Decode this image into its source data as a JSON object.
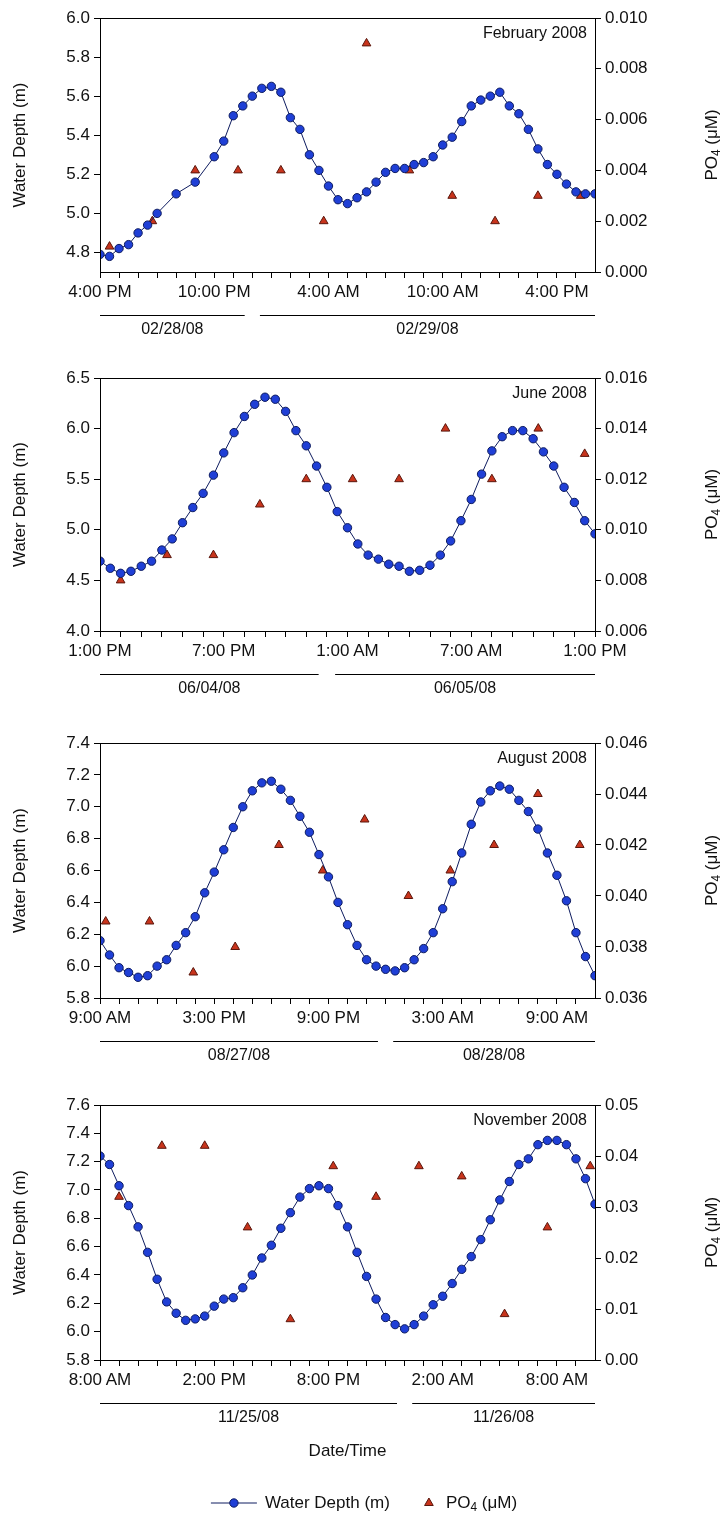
{
  "chart_data": [
    {
      "type": "line",
      "title": "February 2008",
      "ylabel": "Water Depth (m)",
      "y2label": "PO$_{4}$ (μM)",
      "annotations": [
        "02/28/08",
        "02/29/08"
      ],
      "xlim": [
        "2008-02-28T16:00",
        "2008-02-29T18:00"
      ],
      "xticks": [
        {
          "value": "2008-02-28T16:00",
          "label": "4:00 PM"
        },
        {
          "value": "2008-02-28T17:00",
          "label": null
        },
        {
          "value": "2008-02-28T18:00",
          "label": null
        },
        {
          "value": "2008-02-28T19:00",
          "label": null
        },
        {
          "value": "2008-02-28T20:00",
          "label": null
        },
        {
          "value": "2008-02-28T21:00",
          "label": null
        },
        {
          "value": "2008-02-28T22:00",
          "label": "10:00 PM"
        },
        {
          "value": "2008-02-28T23:00",
          "label": null
        },
        {
          "value": "2008-02-29T00:00",
          "label": null
        },
        {
          "value": "2008-02-29T01:00",
          "label": null
        },
        {
          "value": "2008-02-29T02:00",
          "label": null
        },
        {
          "value": "2008-02-29T03:00",
          "label": null
        },
        {
          "value": "2008-02-29T04:00",
          "label": "4:00 AM"
        },
        {
          "value": "2008-02-29T05:00",
          "label": null
        },
        {
          "value": "2008-02-29T06:00",
          "label": null
        },
        {
          "value": "2008-02-29T07:00",
          "label": null
        },
        {
          "value": "2008-02-29T08:00",
          "label": null
        },
        {
          "value": "2008-02-29T09:00",
          "label": null
        },
        {
          "value": "2008-02-29T10:00",
          "label": "10:00 AM"
        },
        {
          "value": "2008-02-29T11:00",
          "label": null
        },
        {
          "value": "2008-02-29T12:00",
          "label": null
        },
        {
          "value": "2008-02-29T13:00",
          "label": null
        },
        {
          "value": "2008-02-29T14:00",
          "label": null
        },
        {
          "value": "2008-02-29T15:00",
          "label": null
        },
        {
          "value": "2008-02-29T16:00",
          "label": "4:00 PM"
        },
        {
          "value": "2008-02-29T17:00",
          "label": null
        }
      ],
      "ylim": [
        4.7,
        6.0
      ],
      "yticks": [
        {
          "value": 4.8,
          "label": "4.8"
        },
        {
          "value": 5.0,
          "label": "5.0"
        },
        {
          "value": 5.2,
          "label": "5.2"
        },
        {
          "value": 5.4,
          "label": "5.4"
        },
        {
          "value": 5.6,
          "label": "5.6"
        },
        {
          "value": 5.8,
          "label": "5.8"
        },
        {
          "value": 6.0,
          "label": "6.0"
        }
      ],
      "y2lim": [
        0,
        0.01
      ],
      "y2ticks": [
        {
          "value": 0,
          "label": "0.000"
        },
        {
          "value": 0.002,
          "label": "0.002"
        },
        {
          "value": 0.004,
          "label": "0.004"
        },
        {
          "value": 0.006,
          "label": "0.006"
        },
        {
          "value": 0.008,
          "label": "0.008"
        },
        {
          "value": 0.01,
          "label": "0.010"
        }
      ],
      "series": [
        {
          "color": "#1f3fd6",
          "marker": "circle",
          "x": [
            "2008-02-28T16:00",
            "2008-02-28T16:30",
            "2008-02-28T17:00",
            "2008-02-28T17:30",
            "2008-02-28T18:00",
            "2008-02-28T18:30",
            "2008-02-28T19:00",
            "2008-02-28T20:00",
            "2008-02-28T21:00",
            "2008-02-28T22:00",
            "2008-02-28T22:30",
            "2008-02-28T23:00",
            "2008-02-28T23:30",
            "2008-02-29T00:00",
            "2008-02-29T00:30",
            "2008-02-29T01:00",
            "2008-02-29T01:30",
            "2008-02-29T02:00",
            "2008-02-29T02:30",
            "2008-02-29T03:00",
            "2008-02-29T03:30",
            "2008-02-29T04:00",
            "2008-02-29T04:30",
            "2008-02-29T05:00",
            "2008-02-29T05:30",
            "2008-02-29T06:00",
            "2008-02-29T06:30",
            "2008-02-29T07:00",
            "2008-02-29T07:30",
            "2008-02-29T08:00",
            "2008-02-29T08:30",
            "2008-02-29T09:00",
            "2008-02-29T09:30",
            "2008-02-29T10:00",
            "2008-02-29T10:30",
            "2008-02-29T11:00",
            "2008-02-29T11:30",
            "2008-02-29T12:00",
            "2008-02-29T12:30",
            "2008-02-29T13:00",
            "2008-02-29T13:30",
            "2008-02-29T14:00",
            "2008-02-29T14:30",
            "2008-02-29T15:00",
            "2008-02-29T15:30",
            "2008-02-29T16:00",
            "2008-02-29T16:30",
            "2008-02-29T17:00",
            "2008-02-29T17:30",
            "2008-02-29T18:00"
          ],
          "values": [
            4.79,
            4.78,
            4.82,
            4.84,
            4.9,
            4.94,
            5.0,
            5.1,
            5.16,
            5.29,
            5.37,
            5.5,
            5.55,
            5.6,
            5.64,
            5.65,
            5.62,
            5.49,
            5.43,
            5.3,
            5.22,
            5.14,
            5.07,
            5.05,
            5.08,
            5.11,
            5.16,
            5.21,
            5.23,
            5.23,
            5.25,
            5.26,
            5.29,
            5.35,
            5.39,
            5.47,
            5.55,
            5.58,
            5.6,
            5.62,
            5.55,
            5.51,
            5.43,
            5.33,
            5.25,
            5.2,
            5.15,
            5.11,
            5.1,
            5.1
          ]
        },
        {
          "type": "scatter",
          "color": "#c8341c",
          "marker": "triangle",
          "axis": "y2",
          "x": [
            "2008-02-28T16:30",
            "2008-02-28T18:45",
            "2008-02-28T21:00",
            "2008-02-28T23:15",
            "2008-02-29T01:30",
            "2008-02-29T03:45",
            "2008-02-29T06:00",
            "2008-02-29T08:15",
            "2008-02-29T10:30",
            "2008-02-29T12:45",
            "2008-02-29T15:00",
            "2008-02-29T17:15"
          ],
          "values": [
            0.001,
            0.002,
            0.004,
            0.004,
            0.004,
            0.002,
            0.009,
            0.004,
            0.003,
            0.002,
            0.003,
            0.003
          ]
        }
      ]
    },
    {
      "type": "line",
      "title": "June 2008",
      "ylabel": "Water Depth (m)",
      "y2label": "PO$_{4}$ (μM)",
      "annotations": [
        "06/04/08",
        "06/05/08"
      ],
      "xlim": [
        "2008-06-04T13:00",
        "2008-06-05T13:00"
      ],
      "xticks": [
        {
          "value": "2008-06-04T13:00",
          "label": "1:00 PM"
        },
        {
          "value": "2008-06-04T14:00",
          "label": null
        },
        {
          "value": "2008-06-04T15:00",
          "label": null
        },
        {
          "value": "2008-06-04T16:00",
          "label": null
        },
        {
          "value": "2008-06-04T17:00",
          "label": null
        },
        {
          "value": "2008-06-04T18:00",
          "label": null
        },
        {
          "value": "2008-06-04T19:00",
          "label": "7:00 PM"
        },
        {
          "value": "2008-06-04T20:00",
          "label": null
        },
        {
          "value": "2008-06-04T21:00",
          "label": null
        },
        {
          "value": "2008-06-04T22:00",
          "label": null
        },
        {
          "value": "2008-06-04T23:00",
          "label": null
        },
        {
          "value": "2008-06-05T00:00",
          "label": null
        },
        {
          "value": "2008-06-05T01:00",
          "label": "1:00 AM"
        },
        {
          "value": "2008-06-05T02:00",
          "label": null
        },
        {
          "value": "2008-06-05T03:00",
          "label": null
        },
        {
          "value": "2008-06-05T04:00",
          "label": null
        },
        {
          "value": "2008-06-05T05:00",
          "label": null
        },
        {
          "value": "2008-06-05T06:00",
          "label": null
        },
        {
          "value": "2008-06-05T07:00",
          "label": "7:00 AM"
        },
        {
          "value": "2008-06-05T08:00",
          "label": null
        },
        {
          "value": "2008-06-05T09:00",
          "label": null
        },
        {
          "value": "2008-06-05T10:00",
          "label": null
        },
        {
          "value": "2008-06-05T11:00",
          "label": null
        },
        {
          "value": "2008-06-05T12:00",
          "label": null
        },
        {
          "value": "2008-06-05T13:00",
          "label": "1:00 PM"
        }
      ],
      "ylim": [
        4.0,
        6.5
      ],
      "yticks": [
        {
          "value": 4.0,
          "label": "4.0"
        },
        {
          "value": 4.5,
          "label": "4.5"
        },
        {
          "value": 5.0,
          "label": "5.0"
        },
        {
          "value": 5.5,
          "label": "5.5"
        },
        {
          "value": 6.0,
          "label": "6.0"
        },
        {
          "value": 6.5,
          "label": "6.5"
        }
      ],
      "y2lim": [
        0.006,
        0.016
      ],
      "y2ticks": [
        {
          "value": 0.006,
          "label": "0.006"
        },
        {
          "value": 0.008,
          "label": "0.008"
        },
        {
          "value": 0.01,
          "label": "0.010"
        },
        {
          "value": 0.012,
          "label": "0.012"
        },
        {
          "value": 0.014,
          "label": "0.014"
        },
        {
          "value": 0.016,
          "label": "0.016"
        }
      ],
      "series": [
        {
          "color": "#1f3fd6",
          "marker": "circle",
          "x": [
            "2008-06-04T13:00",
            "2008-06-04T13:30",
            "2008-06-04T14:00",
            "2008-06-04T14:30",
            "2008-06-04T15:00",
            "2008-06-04T15:30",
            "2008-06-04T16:00",
            "2008-06-04T16:30",
            "2008-06-04T17:00",
            "2008-06-04T17:30",
            "2008-06-04T18:00",
            "2008-06-04T18:30",
            "2008-06-04T19:00",
            "2008-06-04T19:30",
            "2008-06-04T20:00",
            "2008-06-04T20:30",
            "2008-06-04T21:00",
            "2008-06-04T21:30",
            "2008-06-04T22:00",
            "2008-06-04T22:30",
            "2008-06-04T23:00",
            "2008-06-04T23:30",
            "2008-06-05T00:00",
            "2008-06-05T00:30",
            "2008-06-05T01:00",
            "2008-06-05T01:30",
            "2008-06-05T02:00",
            "2008-06-05T02:30",
            "2008-06-05T03:00",
            "2008-06-05T03:30",
            "2008-06-05T04:00",
            "2008-06-05T04:30",
            "2008-06-05T05:00",
            "2008-06-05T05:30",
            "2008-06-05T06:00",
            "2008-06-05T06:30",
            "2008-06-05T07:00",
            "2008-06-05T07:30",
            "2008-06-05T08:00",
            "2008-06-05T08:30",
            "2008-06-05T09:00",
            "2008-06-05T09:30",
            "2008-06-05T10:00",
            "2008-06-05T10:30",
            "2008-06-05T11:00",
            "2008-06-05T11:30",
            "2008-06-05T12:00",
            "2008-06-05T12:30",
            "2008-06-05T13:00"
          ],
          "values": [
            4.69,
            4.62,
            4.57,
            4.59,
            4.64,
            4.69,
            4.8,
            4.91,
            5.07,
            5.22,
            5.36,
            5.54,
            5.76,
            5.96,
            6.12,
            6.24,
            6.31,
            6.29,
            6.17,
            5.98,
            5.83,
            5.63,
            5.42,
            5.18,
            5.02,
            4.86,
            4.75,
            4.71,
            4.66,
            4.64,
            4.59,
            4.6,
            4.65,
            4.75,
            4.89,
            5.09,
            5.3,
            5.55,
            5.78,
            5.92,
            5.98,
            5.98,
            5.9,
            5.77,
            5.63,
            5.42,
            5.27,
            5.09,
            4.96
          ]
        },
        {
          "type": "scatter",
          "color": "#c8341c",
          "marker": "triangle",
          "axis": "y2",
          "x": [
            "2008-06-04T14:00",
            "2008-06-04T16:15",
            "2008-06-04T18:30",
            "2008-06-04T20:45",
            "2008-06-04T23:00",
            "2008-06-05T01:15",
            "2008-06-05T03:30",
            "2008-06-05T05:45",
            "2008-06-05T08:00",
            "2008-06-05T10:15",
            "2008-06-05T12:30"
          ],
          "values": [
            0.008,
            0.009,
            0.009,
            0.011,
            0.012,
            0.012,
            0.012,
            0.014,
            0.012,
            0.014,
            0.013
          ]
        }
      ]
    },
    {
      "type": "line",
      "title": "August 2008",
      "ylabel": "Water Depth (m)",
      "y2label": "PO$_{4}$ (μM)",
      "annotations": [
        "08/27/08",
        "08/28/08"
      ],
      "xlim": [
        "2008-08-27T09:00",
        "2008-08-28T11:00"
      ],
      "xticks": [
        {
          "value": "2008-08-27T09:00",
          "label": "9:00 AM"
        },
        {
          "value": "2008-08-27T10:00",
          "label": null
        },
        {
          "value": "2008-08-27T11:00",
          "label": null
        },
        {
          "value": "2008-08-27T12:00",
          "label": null
        },
        {
          "value": "2008-08-27T13:00",
          "label": null
        },
        {
          "value": "2008-08-27T14:00",
          "label": null
        },
        {
          "value": "2008-08-27T15:00",
          "label": "3:00 PM"
        },
        {
          "value": "2008-08-27T16:00",
          "label": null
        },
        {
          "value": "2008-08-27T17:00",
          "label": null
        },
        {
          "value": "2008-08-27T18:00",
          "label": null
        },
        {
          "value": "2008-08-27T19:00",
          "label": null
        },
        {
          "value": "2008-08-27T20:00",
          "label": null
        },
        {
          "value": "2008-08-27T21:00",
          "label": "9:00 PM"
        },
        {
          "value": "2008-08-27T22:00",
          "label": null
        },
        {
          "value": "2008-08-27T23:00",
          "label": null
        },
        {
          "value": "2008-08-28T00:00",
          "label": null
        },
        {
          "value": "2008-08-28T01:00",
          "label": null
        },
        {
          "value": "2008-08-28T02:00",
          "label": null
        },
        {
          "value": "2008-08-28T03:00",
          "label": "3:00 AM"
        },
        {
          "value": "2008-08-28T04:00",
          "label": null
        },
        {
          "value": "2008-08-28T05:00",
          "label": null
        },
        {
          "value": "2008-08-28T06:00",
          "label": null
        },
        {
          "value": "2008-08-28T07:00",
          "label": null
        },
        {
          "value": "2008-08-28T08:00",
          "label": null
        },
        {
          "value": "2008-08-28T09:00",
          "label": "9:00 AM"
        },
        {
          "value": "2008-08-28T10:00",
          "label": null
        }
      ],
      "ylim": [
        5.8,
        7.4
      ],
      "yticks": [
        {
          "value": 5.8,
          "label": "5.8"
        },
        {
          "value": 6.0,
          "label": "6.0"
        },
        {
          "value": 6.2,
          "label": "6.2"
        },
        {
          "value": 6.4,
          "label": "6.4"
        },
        {
          "value": 6.6,
          "label": "6.6"
        },
        {
          "value": 6.8,
          "label": "6.8"
        },
        {
          "value": 7.0,
          "label": "7.0"
        },
        {
          "value": 7.2,
          "label": "7.2"
        },
        {
          "value": 7.4,
          "label": "7.4"
        }
      ],
      "y2lim": [
        0.036,
        0.046
      ],
      "y2ticks": [
        {
          "value": 0.036,
          "label": "0.036"
        },
        {
          "value": 0.038,
          "label": "0.038"
        },
        {
          "value": 0.04,
          "label": "0.040"
        },
        {
          "value": 0.042,
          "label": "0.042"
        },
        {
          "value": 0.044,
          "label": "0.044"
        },
        {
          "value": 0.046,
          "label": "0.046"
        }
      ],
      "series": [
        {
          "color": "#1f3fd6",
          "marker": "circle",
          "x": [
            "2008-08-27T09:00",
            "2008-08-27T09:30",
            "2008-08-27T10:00",
            "2008-08-27T10:30",
            "2008-08-27T11:00",
            "2008-08-27T11:30",
            "2008-08-27T12:00",
            "2008-08-27T12:30",
            "2008-08-27T13:00",
            "2008-08-27T13:30",
            "2008-08-27T14:00",
            "2008-08-27T14:30",
            "2008-08-27T15:00",
            "2008-08-27T15:30",
            "2008-08-27T16:00",
            "2008-08-27T16:30",
            "2008-08-27T17:00",
            "2008-08-27T17:30",
            "2008-08-27T18:00",
            "2008-08-27T18:30",
            "2008-08-27T19:00",
            "2008-08-27T19:30",
            "2008-08-27T20:00",
            "2008-08-27T20:30",
            "2008-08-27T21:00",
            "2008-08-27T21:30",
            "2008-08-27T22:00",
            "2008-08-27T22:30",
            "2008-08-27T23:00",
            "2008-08-27T23:30",
            "2008-08-28T00:00",
            "2008-08-28T00:30",
            "2008-08-28T01:00",
            "2008-08-28T01:30",
            "2008-08-28T02:00",
            "2008-08-28T02:30",
            "2008-08-28T03:00",
            "2008-08-28T03:30",
            "2008-08-28T04:00",
            "2008-08-28T04:30",
            "2008-08-28T05:00",
            "2008-08-28T05:30",
            "2008-08-28T06:00",
            "2008-08-28T06:30",
            "2008-08-28T07:00",
            "2008-08-28T07:30",
            "2008-08-28T08:00",
            "2008-08-28T08:30",
            "2008-08-28T09:00",
            "2008-08-28T09:30",
            "2008-08-28T10:00",
            "2008-08-28T10:30",
            "2008-08-28T11:00"
          ],
          "values": [
            6.16,
            6.07,
            5.99,
            5.96,
            5.93,
            5.94,
            6.0,
            6.04,
            6.13,
            6.21,
            6.31,
            6.46,
            6.59,
            6.73,
            6.87,
            7.0,
            7.1,
            7.15,
            7.16,
            7.11,
            7.04,
            6.94,
            6.84,
            6.7,
            6.56,
            6.4,
            6.26,
            6.13,
            6.04,
            6.0,
            5.98,
            5.97,
            5.99,
            6.04,
            6.11,
            6.21,
            6.36,
            6.53,
            6.71,
            6.89,
            7.03,
            7.1,
            7.13,
            7.11,
            7.04,
            6.97,
            6.86,
            6.71,
            6.57,
            6.41,
            6.21,
            6.06,
            5.94
          ]
        },
        {
          "type": "scatter",
          "color": "#c8341c",
          "marker": "triangle",
          "axis": "y2",
          "x": [
            "2008-08-27T09:18",
            "2008-08-27T11:36",
            "2008-08-27T13:54",
            "2008-08-27T16:06",
            "2008-08-27T18:24",
            "2008-08-27T20:42",
            "2008-08-27T22:54",
            "2008-08-28T01:12",
            "2008-08-28T03:24",
            "2008-08-28T05:42",
            "2008-08-28T08:00",
            "2008-08-28T10:12"
          ],
          "values": [
            0.039,
            0.039,
            0.037,
            0.038,
            0.042,
            0.041,
            0.043,
            0.04,
            0.041,
            0.042,
            0.044,
            0.042
          ]
        }
      ]
    },
    {
      "type": "line",
      "title": "November 2008",
      "xlabel": "Date/Time",
      "ylabel": "Water Depth (m)",
      "y2label": "PO$_{4}$ (μM)",
      "legend": "bottom",
      "annotations": [
        "11/25/08",
        "11/26/08"
      ],
      "xlim": [
        "2008-11-25T08:00",
        "2008-11-26T10:00"
      ],
      "xticks": [
        {
          "value": "2008-11-25T08:00",
          "label": "8:00 AM"
        },
        {
          "value": "2008-11-25T09:00",
          "label": null
        },
        {
          "value": "2008-11-25T10:00",
          "label": null
        },
        {
          "value": "2008-11-25T11:00",
          "label": null
        },
        {
          "value": "2008-11-25T12:00",
          "label": null
        },
        {
          "value": "2008-11-25T13:00",
          "label": null
        },
        {
          "value": "2008-11-25T14:00",
          "label": "2:00 PM"
        },
        {
          "value": "2008-11-25T15:00",
          "label": null
        },
        {
          "value": "2008-11-25T16:00",
          "label": null
        },
        {
          "value": "2008-11-25T17:00",
          "label": null
        },
        {
          "value": "2008-11-25T18:00",
          "label": null
        },
        {
          "value": "2008-11-25T19:00",
          "label": null
        },
        {
          "value": "2008-11-25T20:00",
          "label": "8:00 PM"
        },
        {
          "value": "2008-11-25T21:00",
          "label": null
        },
        {
          "value": "2008-11-25T22:00",
          "label": null
        },
        {
          "value": "2008-11-25T23:00",
          "label": null
        },
        {
          "value": "2008-11-26T00:00",
          "label": null
        },
        {
          "value": "2008-11-26T01:00",
          "label": null
        },
        {
          "value": "2008-11-26T02:00",
          "label": "2:00 AM"
        },
        {
          "value": "2008-11-26T03:00",
          "label": null
        },
        {
          "value": "2008-11-26T04:00",
          "label": null
        },
        {
          "value": "2008-11-26T05:00",
          "label": null
        },
        {
          "value": "2008-11-26T06:00",
          "label": null
        },
        {
          "value": "2008-11-26T07:00",
          "label": null
        },
        {
          "value": "2008-11-26T08:00",
          "label": "8:00 AM"
        },
        {
          "value": "2008-11-26T09:00",
          "label": null
        }
      ],
      "ylim": [
        5.8,
        7.6
      ],
      "yticks": [
        {
          "value": 5.8,
          "label": "5.8"
        },
        {
          "value": 6.0,
          "label": "6.0"
        },
        {
          "value": 6.2,
          "label": "6.2"
        },
        {
          "value": 6.4,
          "label": "6.4"
        },
        {
          "value": 6.6,
          "label": "6.6"
        },
        {
          "value": 6.8,
          "label": "6.8"
        },
        {
          "value": 7.0,
          "label": "7.0"
        },
        {
          "value": 7.2,
          "label": "7.2"
        },
        {
          "value": 7.4,
          "label": "7.4"
        },
        {
          "value": 7.6,
          "label": "7.6"
        }
      ],
      "y2lim": [
        0,
        0.05
      ],
      "y2ticks": [
        {
          "value": 0,
          "label": "0.00"
        },
        {
          "value": 0.01,
          "label": "0.01"
        },
        {
          "value": 0.02,
          "label": "0.02"
        },
        {
          "value": 0.03,
          "label": "0.03"
        },
        {
          "value": 0.04,
          "label": "0.04"
        },
        {
          "value": 0.05,
          "label": "0.05"
        }
      ],
      "series": [
        {
          "name": "Water Depth (m)",
          "color": "#1f3fd6",
          "marker": "circle",
          "x": [
            "2008-11-25T08:00",
            "2008-11-25T08:30",
            "2008-11-25T09:00",
            "2008-11-25T09:30",
            "2008-11-25T10:00",
            "2008-11-25T10:30",
            "2008-11-25T11:00",
            "2008-11-25T11:30",
            "2008-11-25T12:00",
            "2008-11-25T12:30",
            "2008-11-25T13:00",
            "2008-11-25T13:30",
            "2008-11-25T14:00",
            "2008-11-25T14:30",
            "2008-11-25T15:00",
            "2008-11-25T15:30",
            "2008-11-25T16:00",
            "2008-11-25T16:30",
            "2008-11-25T17:00",
            "2008-11-25T17:30",
            "2008-11-25T18:00",
            "2008-11-25T18:30",
            "2008-11-25T19:00",
            "2008-11-25T19:30",
            "2008-11-25T20:00",
            "2008-11-25T20:30",
            "2008-11-25T21:00",
            "2008-11-25T21:30",
            "2008-11-25T22:00",
            "2008-11-25T22:30",
            "2008-11-25T23:00",
            "2008-11-25T23:30",
            "2008-11-26T00:00",
            "2008-11-26T00:30",
            "2008-11-26T01:00",
            "2008-11-26T01:30",
            "2008-11-26T02:00",
            "2008-11-26T02:30",
            "2008-11-26T03:00",
            "2008-11-26T03:30",
            "2008-11-26T04:00",
            "2008-11-26T04:30",
            "2008-11-26T05:00",
            "2008-11-26T05:30",
            "2008-11-26T06:00",
            "2008-11-26T06:30",
            "2008-11-26T07:00",
            "2008-11-26T07:30",
            "2008-11-26T08:00",
            "2008-11-26T08:30",
            "2008-11-26T09:00",
            "2008-11-26T09:30",
            "2008-11-26T10:00"
          ],
          "values": [
            7.24,
            7.18,
            7.03,
            6.89,
            6.74,
            6.56,
            6.37,
            6.21,
            6.13,
            6.08,
            6.09,
            6.11,
            6.18,
            6.23,
            6.24,
            6.31,
            6.4,
            6.52,
            6.61,
            6.73,
            6.84,
            6.95,
            7.01,
            7.03,
            7.01,
            6.89,
            6.74,
            6.56,
            6.39,
            6.23,
            6.1,
            6.05,
            6.02,
            6.05,
            6.11,
            6.19,
            6.25,
            6.34,
            6.44,
            6.53,
            6.65,
            6.79,
            6.93,
            7.06,
            7.18,
            7.22,
            7.32,
            7.35,
            7.35,
            7.32,
            7.22,
            7.08,
            6.9
          ]
        },
        {
          "name": "PO$_{4}$ (μM)",
          "type": "scatter",
          "color": "#c8341c",
          "marker": "triangle",
          "axis": "y2",
          "x": [
            "2008-11-25T09:00",
            "2008-11-25T11:15",
            "2008-11-25T13:30",
            "2008-11-25T15:45",
            "2008-11-25T18:00",
            "2008-11-25T20:15",
            "2008-11-25T22:30",
            "2008-11-26T00:45",
            "2008-11-26T03:00",
            "2008-11-26T05:15",
            "2008-11-26T07:30",
            "2008-11-26T09:45"
          ],
          "values": [
            0.032,
            0.042,
            0.042,
            0.026,
            0.008,
            0.038,
            0.032,
            0.038,
            0.036,
            0.009,
            0.026,
            0.038
          ]
        }
      ]
    }
  ]
}
